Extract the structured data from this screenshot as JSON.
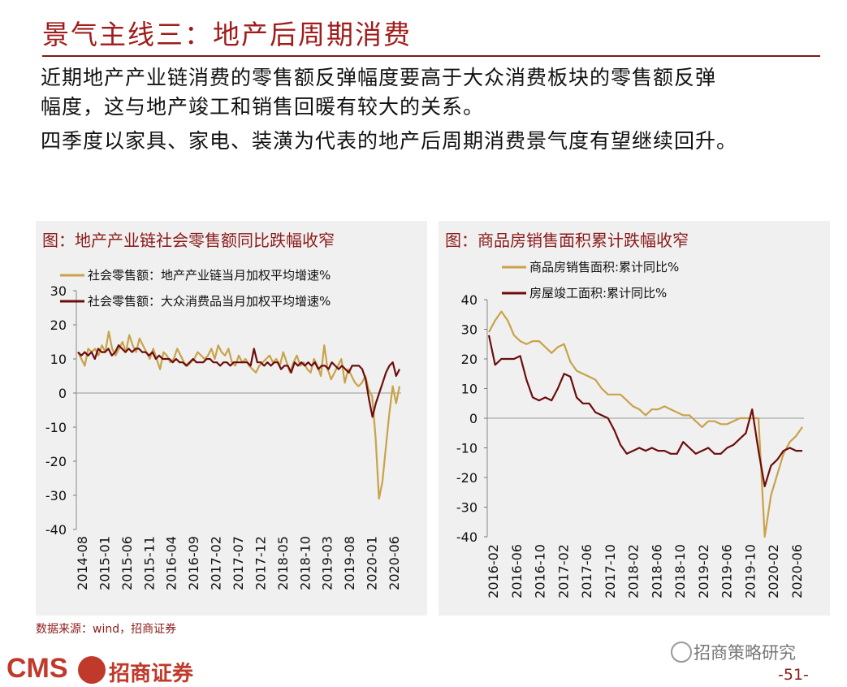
{
  "page": {
    "title": "景气主线三：地产后周期消费",
    "para1_line1": "近期地产产业链消费的零售额反弹幅度要高于大众消费板块的零售额反弹",
    "para1_line2": "幅度，这与地产竣工和销售回暖有较大的关系。",
    "para2": "四季度以家具、家电、装潢为代表的地产后周期消费景气度有望继续回升。",
    "source": "数据来源：wind，招商证券",
    "logo_text": "CMS",
    "logo_cn": "招商证券",
    "wechat": "招商策略研究",
    "page_number": "-51-",
    "colors": {
      "brand": "#a01c1c",
      "gold": "#c9a24a",
      "maroon": "#6b0d0d"
    }
  },
  "chart_data": [
    {
      "type": "line",
      "title": "图：地产产业链社会零售额同比跌幅收窄",
      "ylim": [
        -40,
        30
      ],
      "yticks": [
        30,
        20,
        10,
        0,
        -10,
        -20,
        -30,
        -40
      ],
      "xticks": [
        "2014-08",
        "2015-01",
        "2015-06",
        "2015-11",
        "2016-04",
        "2016-09",
        "2017-02",
        "2017-07",
        "2017-12",
        "2018-05",
        "2018-10",
        "2019-03",
        "2019-08",
        "2020-01",
        "2020-06"
      ],
      "series": [
        {
          "name": "社会零售额：地产产业链当月加权平均增速%",
          "color": "#c9a24a",
          "values": [
            12,
            10,
            8,
            13,
            12,
            13,
            11,
            14,
            12,
            18,
            13,
            11,
            13,
            15,
            12,
            17,
            14,
            12,
            16,
            14,
            12,
            10,
            13,
            10,
            7,
            12,
            11,
            9,
            10,
            13,
            11,
            9,
            8,
            9,
            10,
            12,
            11,
            10,
            11,
            13,
            10,
            14,
            12,
            11,
            13,
            9,
            8,
            11,
            9,
            10,
            8,
            7,
            6,
            8,
            9,
            10,
            11,
            9,
            10,
            8,
            12,
            9,
            6,
            9,
            11,
            8,
            9,
            7,
            6,
            10,
            8,
            5,
            14,
            7,
            4,
            6,
            8,
            10,
            3,
            7,
            5,
            3,
            2,
            3,
            5,
            1,
            -1,
            -13,
            -31,
            -26,
            -16,
            -6,
            2,
            -3,
            2
          ]
        },
        {
          "name": "社会零售额：大众消费品当月加权平均增速%",
          "color": "#6b0d0d",
          "values": [
            12,
            11,
            12,
            11,
            12,
            10,
            13,
            12,
            12,
            13,
            11,
            12,
            14,
            13,
            12,
            13,
            12,
            13,
            13,
            12,
            12,
            11,
            12,
            10,
            11,
            10,
            10,
            10,
            9,
            10,
            9,
            9,
            8,
            9,
            10,
            9,
            9,
            9,
            10,
            10,
            9,
            9,
            8,
            9,
            9,
            8,
            9,
            9,
            9,
            9,
            9,
            8,
            13,
            9,
            9,
            8,
            9,
            8,
            9,
            9,
            7,
            8,
            8,
            6,
            9,
            8,
            9,
            8,
            9,
            8,
            9,
            7,
            8,
            8,
            7,
            9,
            8,
            7,
            8,
            7,
            6,
            8,
            8,
            8,
            7,
            4,
            -2,
            -7,
            -3,
            0,
            3,
            6,
            8,
            9,
            5,
            7
          ]
        }
      ]
    },
    {
      "type": "line",
      "title": "图：商品房销售面积累计跌幅收窄",
      "ylim": [
        -40,
        40
      ],
      "yticks": [
        40,
        30,
        20,
        10,
        0,
        -10,
        -20,
        -30,
        -40
      ],
      "xticks": [
        "2016-02",
        "2016-06",
        "2016-10",
        "2017-02",
        "2017-06",
        "2017-10",
        "2018-02",
        "2018-06",
        "2018-10",
        "2019-02",
        "2019-06",
        "2019-10",
        "2020-02",
        "2020-06"
      ],
      "series": [
        {
          "name": "商品房销售面积:累计同比%",
          "color": "#c9a24a",
          "values": [
            29,
            33,
            36,
            33,
            28,
            26,
            25,
            26,
            26,
            24,
            22,
            24,
            25,
            19,
            16,
            15,
            14,
            13,
            10,
            8,
            8,
            8,
            6,
            4,
            3,
            1,
            3,
            3,
            4,
            3,
            2,
            1,
            1,
            -1,
            -3,
            -1,
            -1,
            -2,
            -2,
            -1,
            0,
            0,
            0,
            0,
            -40,
            -26,
            -19,
            -12,
            -8,
            -6,
            -3
          ]
        },
        {
          "name": "房屋竣工面积:累计同比%",
          "color": "#6b0d0d",
          "values": [
            28,
            18,
            20,
            20,
            20,
            21,
            13,
            7,
            6,
            7,
            6,
            10,
            15,
            14,
            7,
            5,
            5,
            2,
            1,
            0,
            -4,
            -9,
            -12,
            -11,
            -10,
            -11,
            -10,
            -11,
            -11,
            -12,
            -12,
            -8,
            -10,
            -12,
            -11,
            -10,
            -12,
            -12,
            -10,
            -9,
            -7,
            -5,
            3,
            -11,
            -23,
            -16,
            -14,
            -11,
            -10,
            -11,
            -11
          ]
        }
      ]
    }
  ]
}
